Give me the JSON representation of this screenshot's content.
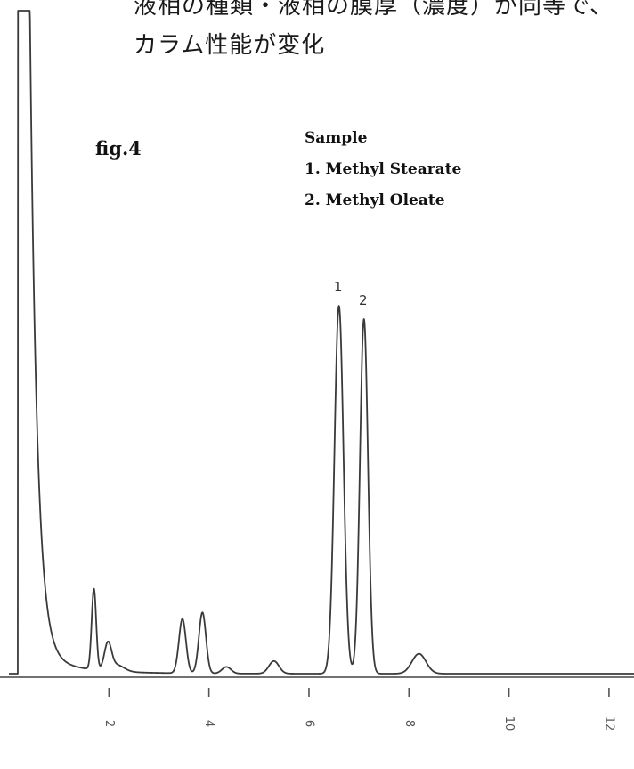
{
  "header": {
    "line1": "液相の種類・液相の膜厚（濃度）が同等で、",
    "line2": "カラム性能が変化"
  },
  "figure_label": "fig.4",
  "legend": {
    "title": "Sample",
    "items": [
      "1. Methyl Stearate",
      "2. Methyl Oleate"
    ]
  },
  "chart_data": {
    "type": "line",
    "title": "",
    "xlabel": "",
    "ylabel": "",
    "xlim": [
      0.0,
      12.5
    ],
    "ylim": [
      0,
      100
    ],
    "x_ticks": [
      2,
      4,
      6,
      8,
      10,
      12
    ],
    "x_tick_labels": [
      "2",
      "4",
      "6",
      "8",
      "10",
      "12"
    ],
    "grid": false,
    "line_color": "#3a3a3a",
    "baseline": 0,
    "series": [
      {
        "peaks": [
          {
            "label": "",
            "rt": 0.3,
            "height": 100,
            "width": 0.12,
            "tail": 0.14,
            "shape": "solvent"
          },
          {
            "label": "",
            "rt": 1.7,
            "height": 12.2,
            "width": 0.045,
            "tail": 0.0
          },
          {
            "label": "",
            "rt": 1.98,
            "height": 3.9,
            "width": 0.07,
            "tail": 0.0
          },
          {
            "label": "",
            "rt": 2.15,
            "height": 1.0,
            "width": 0.15,
            "tail": 0.0
          },
          {
            "label": "",
            "rt": 3.47,
            "height": 8.2,
            "width": 0.07,
            "tail": 0.0
          },
          {
            "label": "",
            "rt": 3.87,
            "height": 9.2,
            "width": 0.07,
            "tail": 0.0
          },
          {
            "label": "",
            "rt": 4.35,
            "height": 1.0,
            "width": 0.09,
            "tail": 0.0
          },
          {
            "label": "",
            "rt": 5.3,
            "height": 1.9,
            "width": 0.1,
            "tail": 0.0
          },
          {
            "label": "1",
            "rt": 6.6,
            "height": 55.5,
            "width": 0.09,
            "tail": 0.0
          },
          {
            "label": "2",
            "rt": 7.1,
            "height": 53.5,
            "width": 0.08,
            "tail": 0.0
          },
          {
            "label": "",
            "rt": 8.2,
            "height": 3.0,
            "width": 0.14,
            "tail": 0.0
          }
        ]
      }
    ]
  }
}
